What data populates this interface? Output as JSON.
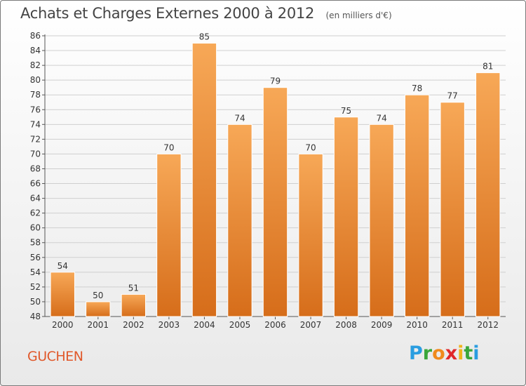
{
  "title": "Achats et Charges Externes 2000 à 2012",
  "unit": "(en milliers d'€)",
  "commune": "GUCHEN",
  "brand": {
    "name": "Proxiti",
    "letters": [
      "P",
      "r",
      "o",
      "x",
      "i",
      "t",
      "i"
    ],
    "colors": [
      "#2a9de0",
      "#3aa63a",
      "#f08a1c",
      "#e0282a",
      "#f0b41c",
      "#3aa63a",
      "#2a9de0"
    ]
  },
  "colors": {
    "bar_light": "#f7a857",
    "bar_dark": "#d66d1a",
    "grid": "#cfcfcf",
    "axis": "#555555"
  },
  "chart_data": {
    "type": "bar",
    "categories": [
      "2000",
      "2001",
      "2002",
      "2003",
      "2004",
      "2005",
      "2006",
      "2007",
      "2008",
      "2009",
      "2010",
      "2011",
      "2012"
    ],
    "values": [
      54,
      50,
      51,
      70,
      85,
      74,
      79,
      70,
      75,
      74,
      78,
      77,
      81
    ],
    "ylim": [
      48,
      86
    ],
    "yticks": [
      48,
      50,
      52,
      54,
      56,
      58,
      60,
      62,
      64,
      66,
      68,
      70,
      72,
      74,
      76,
      78,
      80,
      82,
      84,
      86
    ],
    "grid": true,
    "xlabel": "",
    "ylabel": ""
  }
}
